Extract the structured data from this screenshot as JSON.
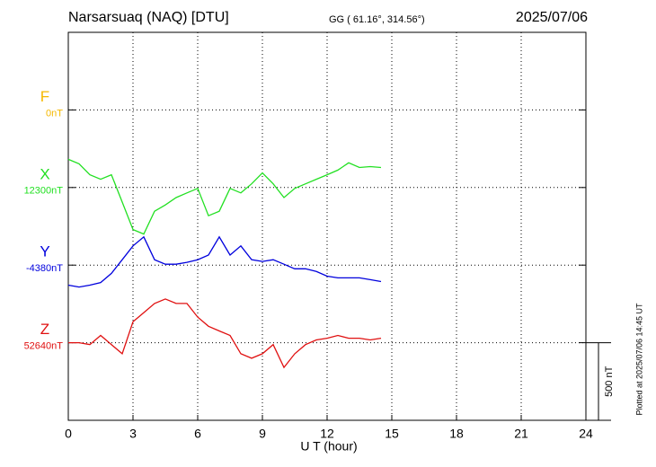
{
  "chart_data": {
    "type": "line",
    "title": "Narsarsuaq (NAQ)  [DTU]",
    "subtitle": "GG ( 61.16°, 314.56°)",
    "date": "2025/07/06",
    "xlabel": "U T (hour)",
    "note": "Plotted at 2025/07/06 14:45 UT",
    "xlim": [
      0,
      24
    ],
    "xticks": [
      0,
      3,
      6,
      9,
      12,
      15,
      18,
      21,
      24
    ],
    "grid": true,
    "scale_bar": {
      "value": 500,
      "label": "500 nT"
    },
    "x": [
      0,
      0.5,
      1,
      1.5,
      2,
      2.5,
      3,
      3.5,
      4,
      4.5,
      5,
      5.5,
      6,
      6.5,
      7,
      7.5,
      8,
      8.5,
      9,
      9.5,
      10,
      10.5,
      11,
      11.5,
      12,
      12.5,
      13,
      13.5,
      14,
      14.5
    ],
    "series": [
      {
        "name": "F",
        "color": "#f5b800",
        "base": 0,
        "base_label": "0nT",
        "values": [
          null,
          null,
          null,
          null,
          null,
          null,
          null,
          null,
          null,
          null,
          null,
          null,
          null,
          null,
          null,
          null,
          null,
          null,
          null,
          null,
          null,
          null,
          null,
          null,
          null,
          null,
          null,
          null,
          null,
          null
        ]
      },
      {
        "name": "X",
        "color": "#22e022",
        "base": 12300,
        "base_label": "12300nT",
        "values": [
          12482,
          12453,
          12382,
          12353,
          12382,
          12206,
          12029,
          12000,
          12147,
          12188,
          12235,
          12265,
          12294,
          12118,
          12147,
          12294,
          12265,
          12324,
          12394,
          12324,
          12235,
          12294,
          12324,
          12353,
          12382,
          12412,
          12459,
          12429,
          12435,
          12429
        ]
      },
      {
        "name": "Y",
        "color": "#0000dd",
        "base": -4380,
        "base_label": "-4380nT",
        "values": [
          -4509,
          -4521,
          -4509,
          -4492,
          -4433,
          -4345,
          -4256,
          -4198,
          -4345,
          -4374,
          -4374,
          -4362,
          -4345,
          -4315,
          -4198,
          -4315,
          -4256,
          -4345,
          -4356,
          -4345,
          -4374,
          -4404,
          -4404,
          -4421,
          -4451,
          -4462,
          -4462,
          -4462,
          -4474,
          -4486
        ]
      },
      {
        "name": "Z",
        "color": "#e01010",
        "base": 52640,
        "base_label": "52640nT",
        "values": [
          52640,
          52640,
          52628,
          52687,
          52628,
          52569,
          52775,
          52834,
          52893,
          52922,
          52893,
          52893,
          52805,
          52746,
          52716,
          52687,
          52569,
          52540,
          52569,
          52628,
          52481,
          52569,
          52628,
          52658,
          52669,
          52687,
          52669,
          52669,
          52658,
          52669
        ]
      }
    ]
  }
}
